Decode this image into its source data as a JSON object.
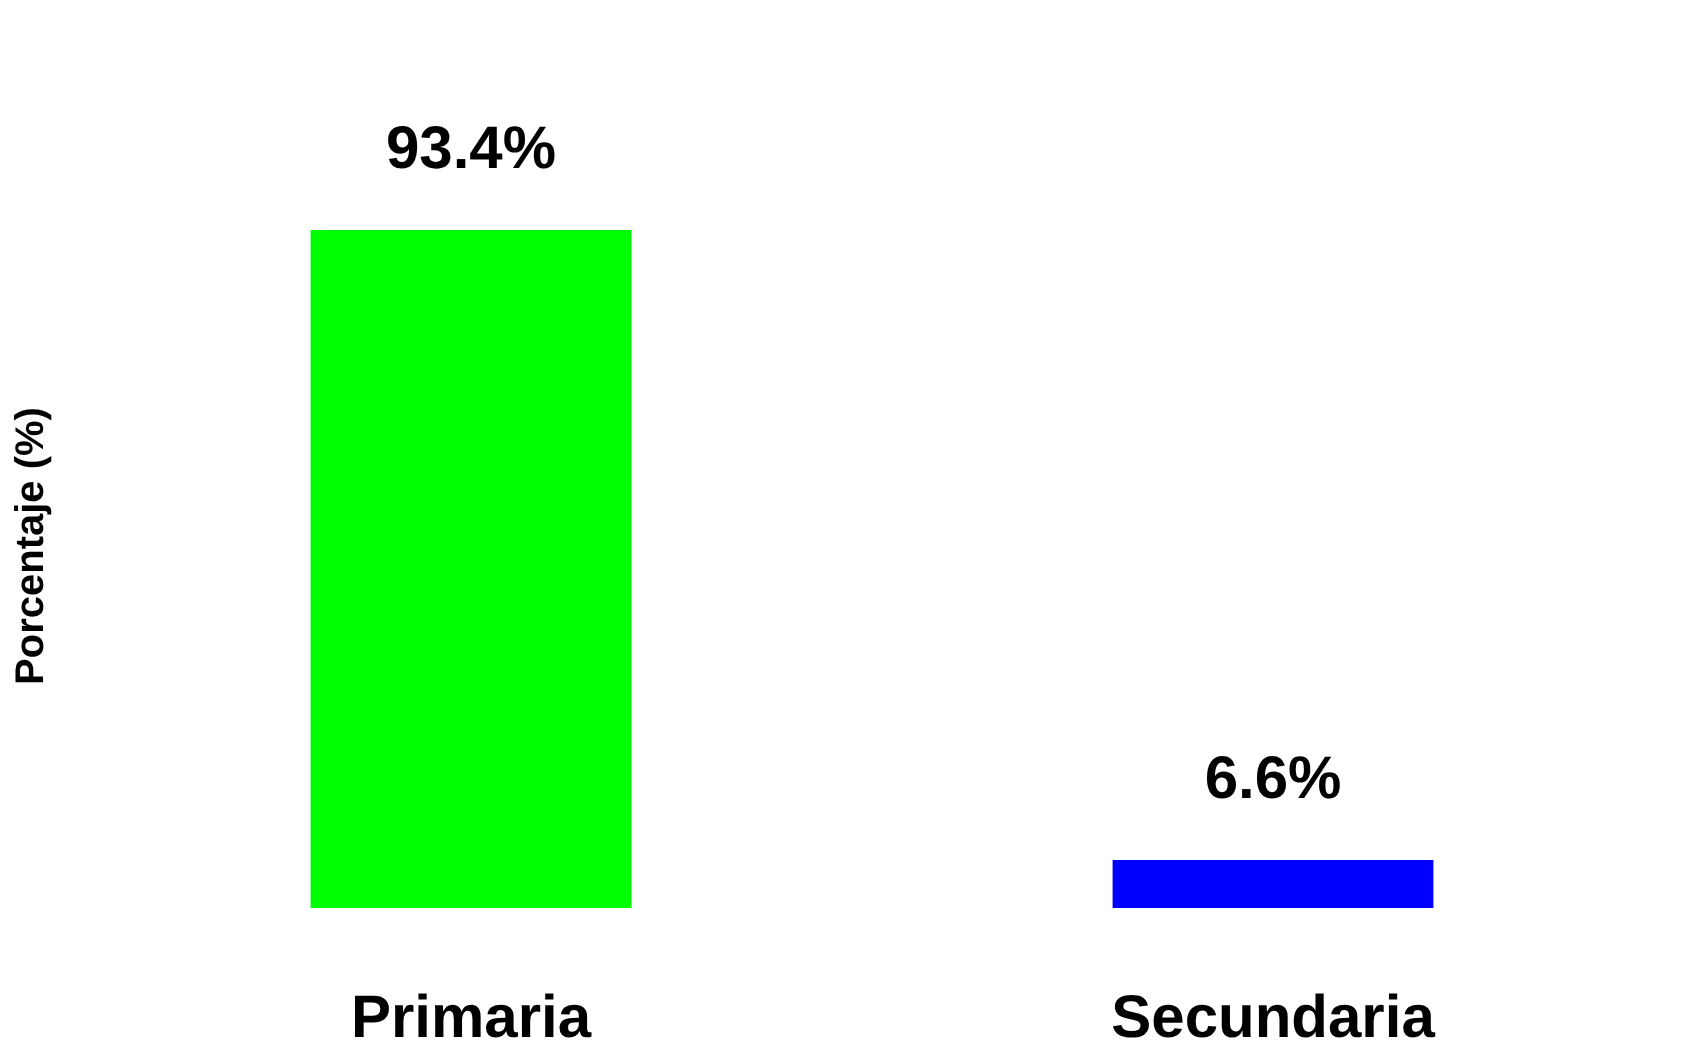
{
  "chart_data": {
    "type": "bar",
    "ylabel": "Porcentaje (%)",
    "categories": [
      "Primaria",
      "Secundaria"
    ],
    "values": [
      93.4,
      6.6
    ],
    "colors": [
      "#00ff00",
      "#0000ff"
    ],
    "value_labels": [
      "93.4%",
      "6.6%"
    ],
    "grid": false
  }
}
